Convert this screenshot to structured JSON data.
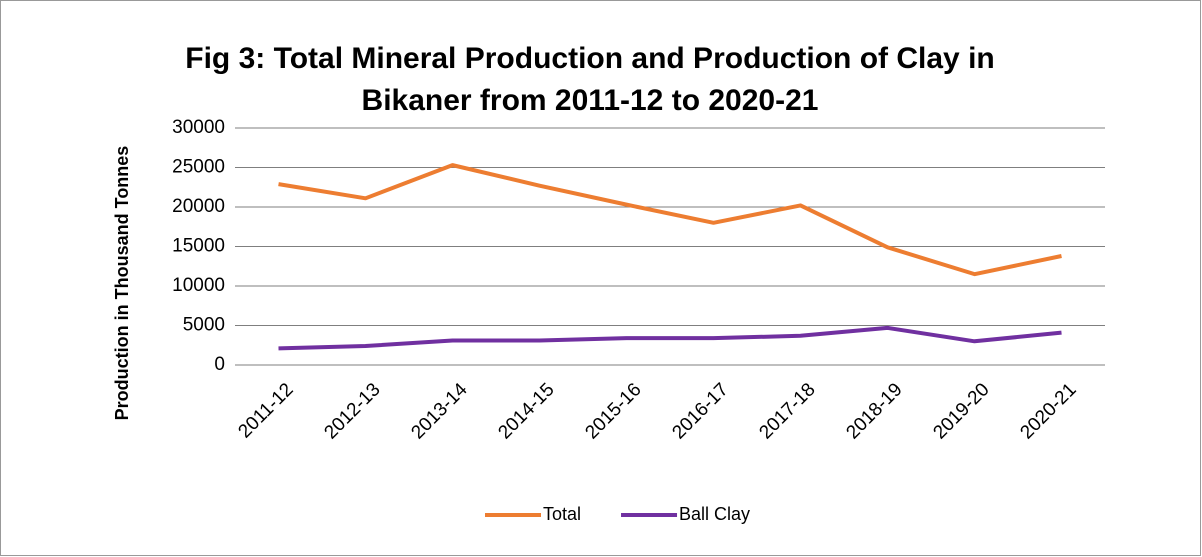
{
  "chart_data": {
    "type": "line",
    "title": [
      "Fig 3: Total Mineral Production and Production of Clay in",
      "Bikaner  from 2011-12 to 2020-21"
    ],
    "y_label": "Production in Thousand Tonnes",
    "categories": [
      "2011-12",
      "2012-13",
      "2013-14",
      "2014-15",
      "2015-16",
      "2016-17",
      "2017-18",
      "2018-19",
      "2019-20",
      "2020-21"
    ],
    "series": [
      {
        "name": "Total",
        "color": "#ed7d31",
        "values": [
          22900,
          21100,
          25300,
          22700,
          20300,
          18000,
          20200,
          14900,
          11500,
          13800
        ]
      },
      {
        "name": "Ball Clay",
        "color": "#7030a0",
        "values": [
          2100,
          2400,
          3100,
          3100,
          3400,
          3400,
          3700,
          4700,
          3000,
          4100
        ]
      }
    ],
    "ylim": [
      0,
      30000
    ],
    "yticks": [
      0,
      5000,
      10000,
      15000,
      20000,
      25000,
      30000
    ],
    "grid": true,
    "legend": "bottom"
  }
}
